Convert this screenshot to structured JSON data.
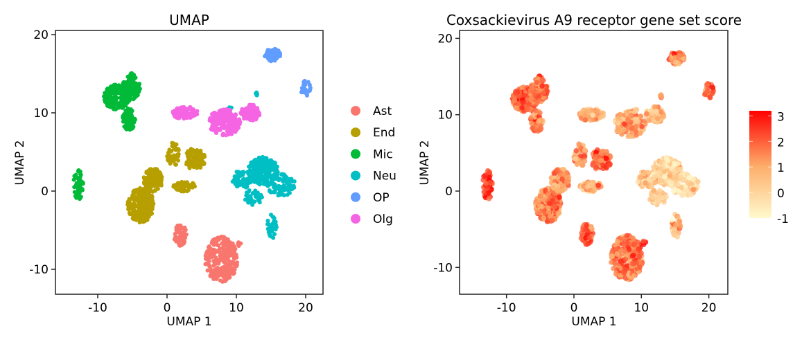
{
  "chart_data": [
    {
      "type": "scatter",
      "title": "UMAP",
      "xlabel": "UMAP 1",
      "ylabel": "UMAP 2",
      "xlim": [
        -16,
        22.5
      ],
      "ylim": [
        -13.2,
        20.5
      ],
      "xticks": [
        -10,
        0,
        10,
        20
      ],
      "yticks": [
        -10,
        0,
        10,
        20
      ],
      "grid": false,
      "legend": {
        "placement": "right",
        "entries": [
          "Ast",
          "End",
          "Mic",
          "Neu",
          "OP",
          "Olg"
        ]
      },
      "colors": {
        "Ast": "#F8766D",
        "End": "#B79F00",
        "Mic": "#00BA38",
        "Neu": "#00BFC4",
        "OP": "#619CFF",
        "Olg": "#F564E3"
      }
    },
    {
      "type": "scatter",
      "title": "Coxsackievirus A9 receptor gene set score",
      "xlabel": "UMAP 1",
      "ylabel": "UMAP 2",
      "xlim": [
        -16,
        22.5
      ],
      "ylim": [
        -13.2,
        20.5
      ],
      "xticks": [
        -10,
        0,
        10,
        20
      ],
      "yticks": [
        -10,
        0,
        10,
        20
      ],
      "grid": false,
      "colorbar": {
        "placement": "right",
        "ticks": [
          3,
          2,
          1,
          0,
          -1
        ],
        "range": [
          -1,
          3.2
        ],
        "colors": [
          "#FFFACD",
          "#FDAE6B",
          "#FF0000"
        ]
      }
    }
  ],
  "clusters": [
    {
      "label": "Ast",
      "blobs": [
        [
          7.8,
          -8.7,
          2.4,
          2.9,
          260,
          1.8
        ],
        [
          1.9,
          -5.6,
          0.9,
          1.4,
          60,
          2.1
        ],
        [
          10.5,
          -6.8,
          0.35,
          0.3,
          4,
          3.1
        ]
      ]
    },
    {
      "label": "End",
      "blobs": [
        [
          -3.8,
          -1.8,
          1.9,
          2.2,
          230,
          1.5
        ],
        [
          -2,
          1.4,
          1.4,
          1.5,
          120,
          1.2
        ],
        [
          0.9,
          4.7,
          0.9,
          1.5,
          50,
          1.2
        ],
        [
          4,
          4.1,
          1.5,
          1.4,
          90,
          1.9
        ],
        [
          2.5,
          0.6,
          1.6,
          0.7,
          50,
          0.9
        ]
      ]
    },
    {
      "label": "Mic",
      "blobs": [
        [
          -7.3,
          12,
          1.8,
          1.6,
          150,
          2.0
        ],
        [
          -5.2,
          13.3,
          1.3,
          1.8,
          110,
          1.9
        ],
        [
          -5.5,
          9.2,
          1.0,
          1.4,
          70,
          1.6
        ],
        [
          -12.8,
          0.8,
          0.7,
          1.9,
          50,
          2.4
        ]
      ]
    },
    {
      "label": "Neu",
      "blobs": [
        [
          13.8,
          2.6,
          2.2,
          1.8,
          200,
          0.0
        ],
        [
          10.8,
          1.5,
          1.4,
          1.2,
          60,
          0.2
        ],
        [
          16.5,
          0.8,
          2.1,
          1.4,
          80,
          -0.2
        ],
        [
          12.5,
          -0.8,
          1.4,
          1.0,
          40,
          0.1
        ],
        [
          15.1,
          -4.6,
          0.7,
          1.6,
          35,
          0.6
        ],
        [
          9,
          10.5,
          0.6,
          0.2,
          8,
          0.5
        ],
        [
          12.9,
          12.4,
          0.2,
          0.3,
          4,
          1.2
        ]
      ]
    },
    {
      "label": "OP",
      "blobs": [
        [
          15.2,
          17.4,
          1.2,
          0.8,
          90,
          1.3
        ],
        [
          20,
          13.1,
          0.7,
          1.0,
          30,
          2.0
        ]
      ]
    },
    {
      "label": "Olg",
      "blobs": [
        [
          2.6,
          10,
          1.9,
          0.8,
          80,
          0.8
        ],
        [
          8.3,
          8.8,
          2.3,
          1.7,
          210,
          0.9
        ],
        [
          12,
          10,
          1.4,
          1.1,
          90,
          0.7
        ]
      ]
    }
  ]
}
